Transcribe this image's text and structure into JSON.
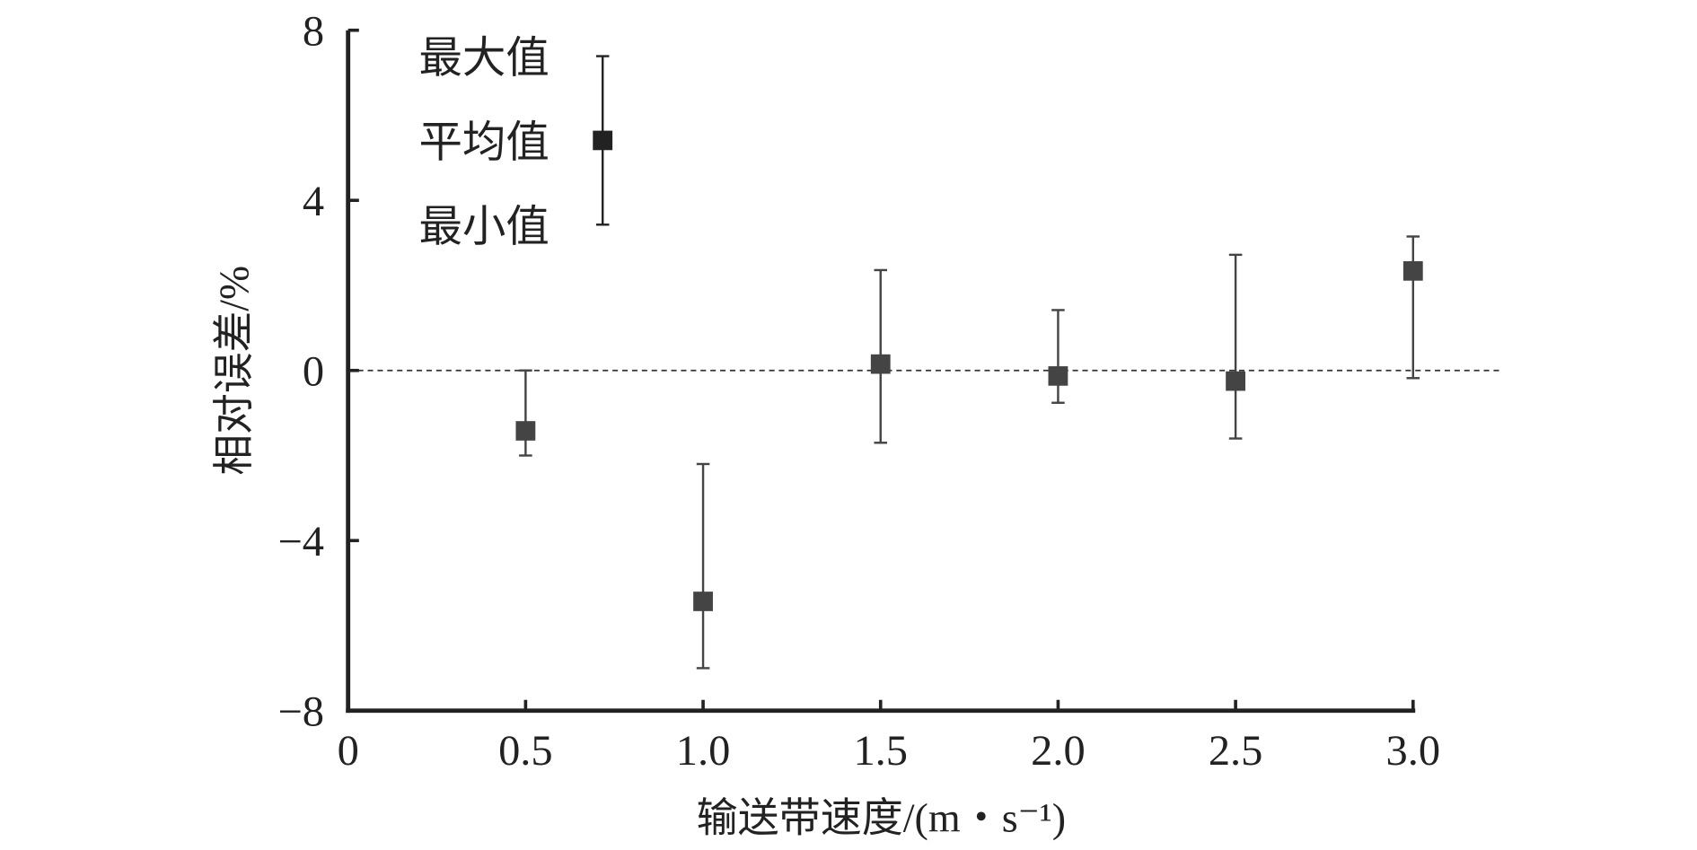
{
  "chart_data": {
    "type": "scatter",
    "title": "",
    "xlabel": "输送带速度/(m・s⁻¹)",
    "ylabel": "相对误差/%",
    "xlim": [
      0,
      3.0
    ],
    "ylim": [
      -8,
      8
    ],
    "xticks": [
      "0",
      "0.5",
      "1.0",
      "1.5",
      "2.0",
      "2.5",
      "3.0"
    ],
    "xtick_values": [
      0,
      0.5,
      1.0,
      1.5,
      2.0,
      2.5,
      3.0
    ],
    "yticks": [
      "8",
      "4",
      "0",
      "−4",
      "−8"
    ],
    "ytick_values": [
      8,
      4,
      0,
      -4,
      -8
    ],
    "reference_line": 0,
    "series": [
      {
        "name": "相对误差",
        "x": [
          0.5,
          1.0,
          1.5,
          2.0,
          2.5,
          3.0
        ],
        "mean": [
          -1.42,
          -5.43,
          0.15,
          -0.13,
          -0.25,
          2.34
        ],
        "max": [
          0.0,
          -2.2,
          2.36,
          1.42,
          2.72,
          3.15
        ],
        "min": [
          -2.0,
          -7.0,
          -1.7,
          -0.76,
          -1.6,
          -0.18
        ]
      }
    ],
    "legend": {
      "placement": "top-left",
      "max_label": "最大值",
      "mean_label": "平均值",
      "min_label": "最小值"
    },
    "colors": {
      "marker": "#444444",
      "axis": "#222222"
    }
  }
}
